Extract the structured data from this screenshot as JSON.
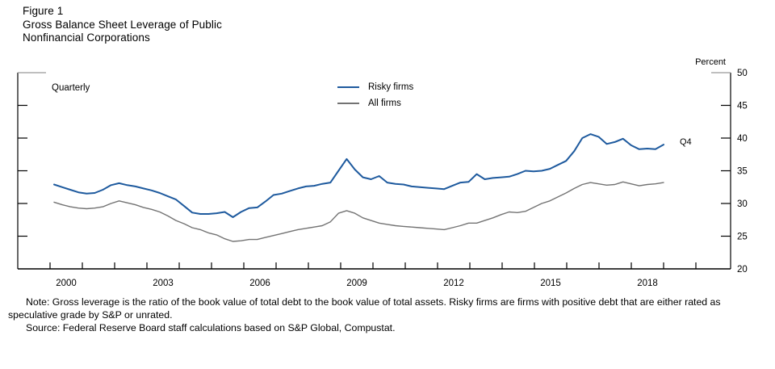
{
  "figure": {
    "label": "Figure 1",
    "title_line1": "Gross Balance Sheet Leverage of Public",
    "title_line2": "Nonfinancial Corporations"
  },
  "chart": {
    "frequency_label": "Quarterly",
    "unit_label": "Percent",
    "last_point_label": "Q4",
    "axis_color": "#000000",
    "cap_color": "#999999",
    "legend": [
      {
        "label": "Risky firms",
        "color": "#1e5a9e",
        "width": 2
      },
      {
        "label": "All firms",
        "color": "#737373",
        "width": 1.4
      }
    ]
  },
  "chart_data": {
    "type": "line",
    "title": "Gross Balance Sheet Leverage of Public Nonfinancial Corporations",
    "frequency": "quarterly",
    "x_start": "2000Q1",
    "x_end": "2018Q4",
    "x_tick_labels": [
      "2000",
      "2003",
      "2006",
      "2009",
      "2012",
      "2015",
      "2018"
    ],
    "xlabel": "",
    "ylabel": "Percent",
    "ylim": [
      20,
      50
    ],
    "y_ticks": [
      20,
      25,
      30,
      35,
      40,
      45,
      50
    ],
    "grid": false,
    "legend_position": "top-center",
    "series": [
      {
        "name": "Risky firms",
        "color": "#1e5a9e",
        "values": [
          32.9,
          32.5,
          32.1,
          31.7,
          31.5,
          31.6,
          32.1,
          32.8,
          33.1,
          32.8,
          32.6,
          32.3,
          32.0,
          31.6,
          31.1,
          30.6,
          29.6,
          28.6,
          28.4,
          28.4,
          28.5,
          28.7,
          27.9,
          28.7,
          29.3,
          29.4,
          30.3,
          31.3,
          31.5,
          31.9,
          32.3,
          32.6,
          32.7,
          33.0,
          33.2,
          35.0,
          36.8,
          35.2,
          34.0,
          33.7,
          34.2,
          33.2,
          33.0,
          32.9,
          32.6,
          32.5,
          32.4,
          32.3,
          32.2,
          32.7,
          33.2,
          33.3,
          34.5,
          33.7,
          33.9,
          34.0,
          34.1,
          34.5,
          35.0,
          34.9,
          35.0,
          35.3,
          35.9,
          36.5,
          38.0,
          40.0,
          40.6,
          40.2,
          39.1,
          39.4,
          39.9,
          38.9,
          38.3,
          38.4,
          38.3,
          39.0
        ]
      },
      {
        "name": "All firms",
        "color": "#737373",
        "values": [
          30.2,
          29.8,
          29.5,
          29.3,
          29.2,
          29.3,
          29.5,
          30.0,
          30.4,
          30.1,
          29.8,
          29.4,
          29.1,
          28.7,
          28.1,
          27.4,
          26.9,
          26.3,
          26.0,
          25.5,
          25.2,
          24.6,
          24.2,
          24.3,
          24.5,
          24.5,
          24.8,
          25.1,
          25.4,
          25.7,
          26.0,
          26.2,
          26.4,
          26.6,
          27.2,
          28.5,
          28.9,
          28.5,
          27.8,
          27.4,
          27.0,
          26.8,
          26.6,
          26.5,
          26.4,
          26.3,
          26.2,
          26.1,
          26.0,
          26.3,
          26.6,
          27.0,
          27.0,
          27.4,
          27.8,
          28.3,
          28.7,
          28.6,
          28.8,
          29.4,
          30.0,
          30.4,
          31.0,
          31.6,
          32.3,
          32.9,
          33.2,
          33.0,
          32.8,
          32.9,
          33.3,
          33.0,
          32.7,
          32.9,
          33.0,
          33.2
        ]
      }
    ]
  },
  "notes": {
    "note": "Note: Gross leverage is the ratio of the book value of total debt to the book value of total assets. Risky firms are firms with positive debt that are either rated as speculative grade by S&P or unrated.",
    "source": "Source: Federal Reserve Board staff calculations based on S&P Global, Compustat."
  }
}
